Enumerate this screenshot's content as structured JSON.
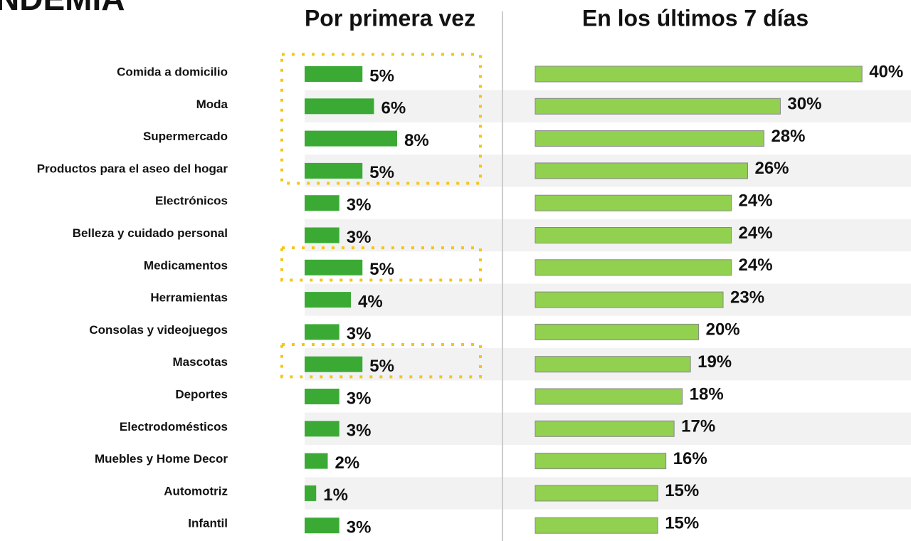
{
  "chart_data": {
    "type": "bar",
    "orientation": "horizontal",
    "title": "NDEMIA",
    "categories": [
      "Comida a domicilio",
      "Moda",
      "Supermercado",
      "Productos para el aseo del hogar",
      "Electrónicos",
      "Belleza y cuidado personal",
      "Medicamentos",
      "Herramientas",
      "Consolas y videojuegos",
      "Mascotas",
      "Deportes",
      "Electrodomésticos",
      "Muebles y Home Decor",
      "Automotriz",
      "Infantil"
    ],
    "series": [
      {
        "name": "Por primera vez",
        "color": "#3aaa35",
        "values": [
          5,
          6,
          8,
          5,
          3,
          3,
          5,
          4,
          3,
          5,
          3,
          3,
          2,
          1,
          3
        ],
        "value_labels": [
          "5%",
          "6%",
          "8%",
          "5%",
          "3%",
          "3%",
          "5%",
          "4%",
          "3%",
          "5%",
          "3%",
          "3%",
          "2%",
          "1%",
          "3%"
        ]
      },
      {
        "name": "En los últimos 7 días",
        "color": "#92d050",
        "values": [
          40,
          30,
          28,
          26,
          24,
          24,
          24,
          23,
          20,
          19,
          18,
          17,
          16,
          15,
          15
        ],
        "value_labels": [
          "40%",
          "30%",
          "28%",
          "26%",
          "24%",
          "24%",
          "24%",
          "23%",
          "20%",
          "19%",
          "18%",
          "17%",
          "16%",
          "15%",
          "15%"
        ]
      }
    ],
    "highlight": [
      [
        0,
        3
      ],
      [
        6,
        6
      ],
      [
        9,
        9
      ]
    ],
    "highlight_color": "#f5c518"
  }
}
